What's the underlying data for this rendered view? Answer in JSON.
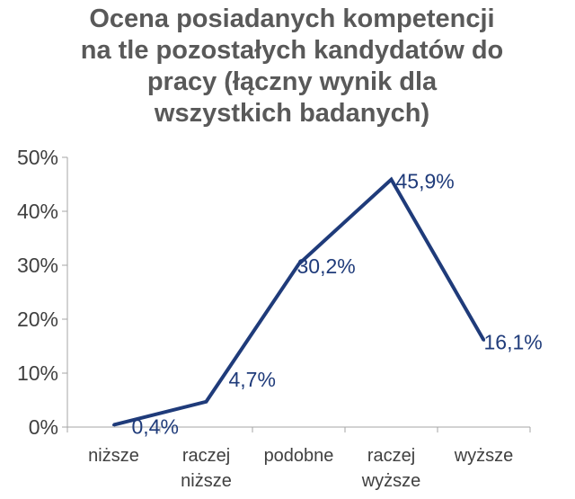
{
  "chart_data": {
    "type": "line",
    "title_lines": [
      "Ocena posiadanych kompetencji",
      "na tle pozostałych kandydatów do",
      "pracy (łączny wynik dla",
      "wszystkich badanych)"
    ],
    "categories": [
      [
        "niższe"
      ],
      [
        "raczej",
        "niższe"
      ],
      [
        "podobne"
      ],
      [
        "raczej",
        "wyższe"
      ],
      [
        "wyższe"
      ]
    ],
    "values": [
      0.4,
      4.7,
      30.2,
      45.9,
      16.1
    ],
    "data_labels": [
      "0,4%",
      "4,7%",
      "30,2%",
      "45,9%",
      "16,1%"
    ],
    "y_ticks": [
      "0%",
      "10%",
      "20%",
      "30%",
      "40%",
      "50%"
    ],
    "ylim": [
      0,
      50
    ],
    "line_color": "#1F3B7A",
    "grid": false,
    "legend": "none"
  }
}
